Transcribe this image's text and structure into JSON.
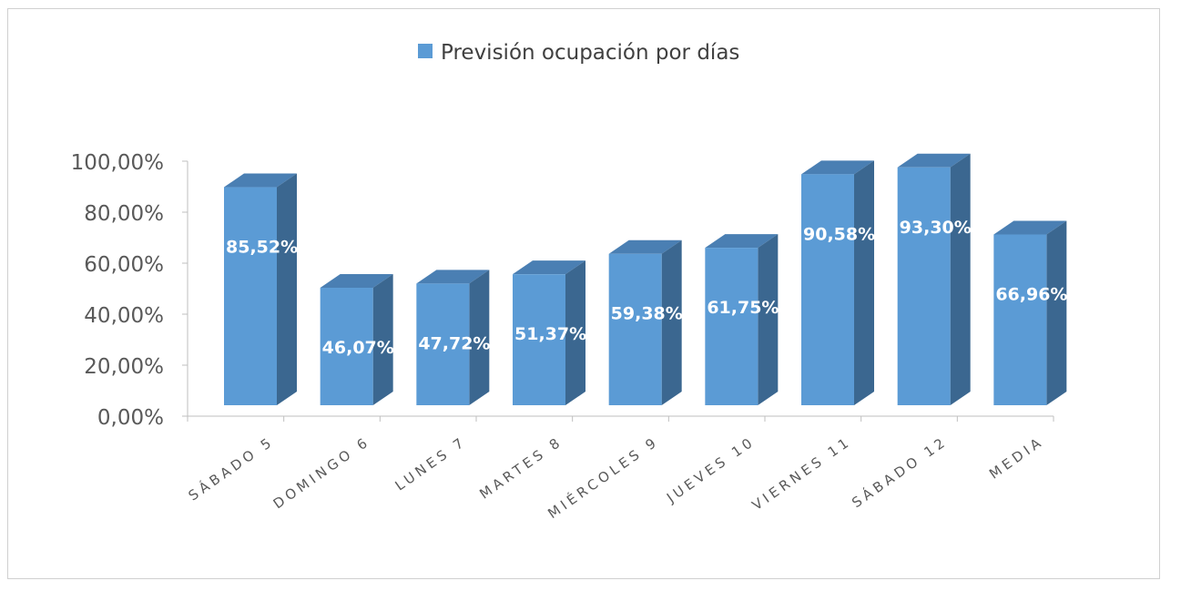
{
  "chart_data": {
    "type": "bar",
    "title": "",
    "xlabel": "",
    "ylabel": "",
    "legend": {
      "placement": "top-center",
      "entries": [
        "Previsión ocupación por días"
      ]
    },
    "categories": [
      "SÁBADO 5",
      "DOMINGO 6",
      "LUNES 7",
      "MARTES 8",
      "MIÉRCOLES 9",
      "JUEVES 10",
      "VIERNES 11",
      "SÁBADO 12",
      "MEDIA"
    ],
    "series": [
      {
        "name": "Previsión ocupación por días",
        "values": [
          85.52,
          46.07,
          47.72,
          51.37,
          59.38,
          61.75,
          90.58,
          93.3,
          66.96
        ],
        "labels": [
          "85,52%",
          "46,07%",
          "47,72%",
          "51,37%",
          "59,38%",
          "61,75%",
          "90,58%",
          "93,30%",
          "66,96%"
        ]
      }
    ],
    "ylim": [
      0,
      100
    ],
    "yticks": [
      0,
      20,
      40,
      60,
      80,
      100
    ],
    "ytick_labels": [
      "0,00%",
      "20,00%",
      "40,00%",
      "60,00%",
      "80,00%",
      "100,00%"
    ],
    "style": "3d-column",
    "grid": false,
    "colors": {
      "front": "#5b9bd5",
      "side": "#3b6790",
      "top": "#4a7fb3",
      "label": "#ffffff"
    }
  }
}
